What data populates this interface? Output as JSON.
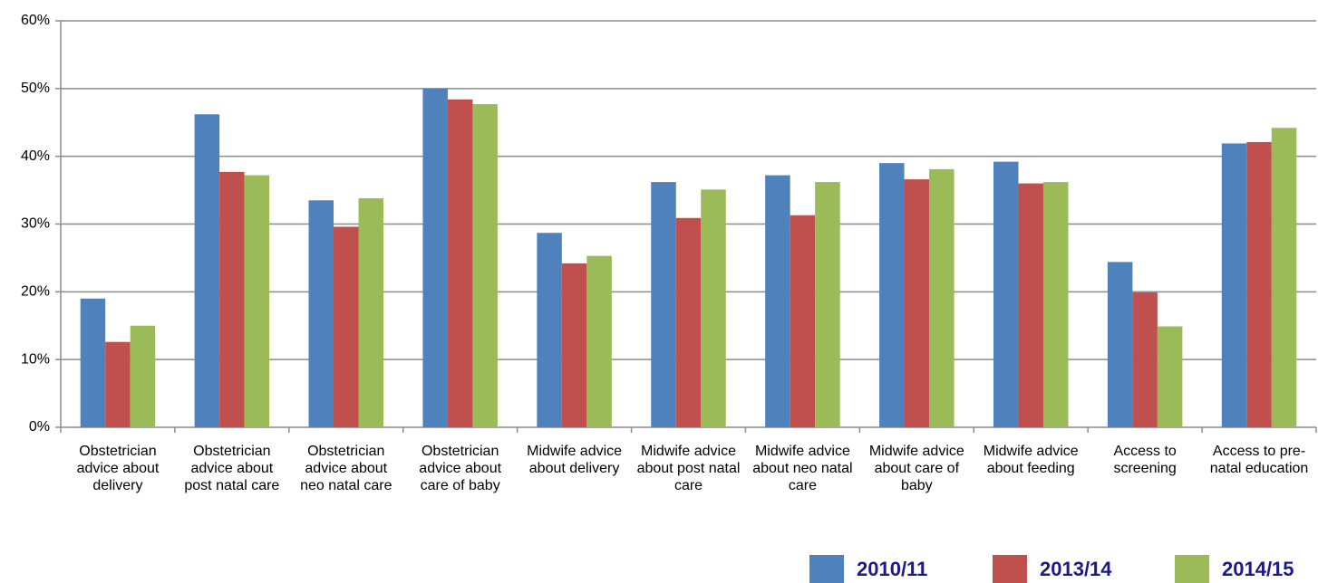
{
  "chart_data": {
    "type": "bar",
    "categories": [
      "Obstetrician advice about delivery",
      "Obstetrician advice about post natal care",
      "Obstetrician advice about neo natal care",
      "Obstetrician advice about care of baby",
      "Midwife advice about delivery",
      "Midwife advice about post natal care",
      "Midwife advice about neo natal care",
      "Midwife advice about care of baby",
      "Midwife advice about feeding",
      "Access to screening",
      "Access to pre-natal education"
    ],
    "series": [
      {
        "name": "2010/11",
        "color": "#4f81bd",
        "values": [
          19,
          46.2,
          33.5,
          50,
          28.7,
          36.2,
          37.2,
          39,
          39.2,
          24.4,
          41.9
        ]
      },
      {
        "name": "2013/14",
        "color": "#c0504d",
        "values": [
          12.6,
          37.7,
          29.6,
          48.4,
          24.2,
          30.9,
          31.3,
          36.6,
          36,
          19.9,
          42.1
        ]
      },
      {
        "name": "2014/15",
        "color": "#9bbb59",
        "values": [
          15,
          37.2,
          33.8,
          47.7,
          25.3,
          35.1,
          36.2,
          38.1,
          36.2,
          14.9,
          44.2
        ]
      }
    ],
    "ylim": [
      0,
      60
    ],
    "yticks": [
      {
        "value": 0,
        "label": "0%"
      },
      {
        "value": 10,
        "label": "10%"
      },
      {
        "value": 20,
        "label": "20%"
      },
      {
        "value": 30,
        "label": "30%"
      },
      {
        "value": 40,
        "label": "40%"
      },
      {
        "value": 50,
        "label": "50%"
      },
      {
        "value": 60,
        "label": "60%"
      }
    ],
    "grid": true
  }
}
